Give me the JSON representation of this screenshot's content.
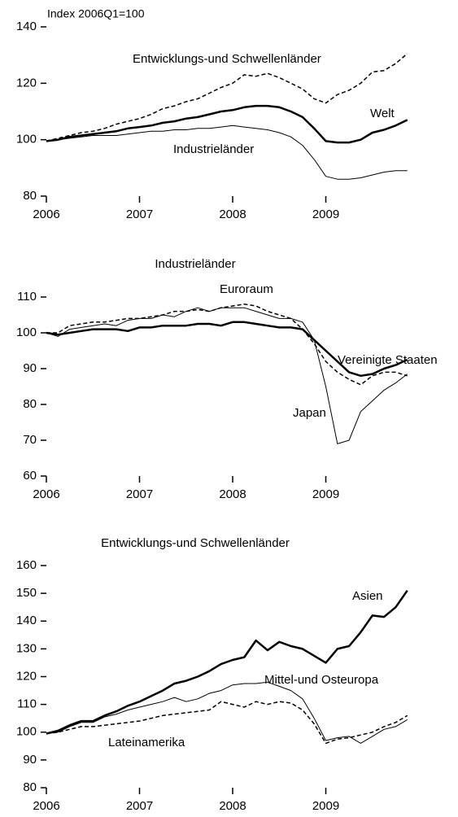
{
  "chart_data": [
    {
      "type": "line",
      "ylabel": "Index 2006Q1=100",
      "x": [
        2006,
        2006.125,
        2006.25,
        2006.375,
        2006.5,
        2006.625,
        2006.75,
        2006.875,
        2007,
        2007.125,
        2007.25,
        2007.375,
        2007.5,
        2007.625,
        2007.75,
        2007.875,
        2008,
        2008.125,
        2008.25,
        2008.375,
        2008.5,
        2008.625,
        2008.75,
        2008.875,
        2009,
        2009.125,
        2009.25,
        2009.375,
        2009.5,
        2009.625,
        2009.75,
        2009.875
      ],
      "xlim": [
        2006,
        2010
      ],
      "xticks": [
        2006,
        2007,
        2008,
        2009
      ],
      "ylim": [
        80,
        140
      ],
      "yticks": [
        80,
        100,
        120,
        140
      ],
      "series": [
        {
          "name": "Entwicklungs-und Schwellenländer",
          "color": "#000000",
          "dashed": true,
          "width": 1.5,
          "values": [
            99.5,
            100.5,
            101.5,
            102.5,
            103,
            104,
            105.5,
            106.5,
            107.5,
            109,
            111,
            112,
            113.5,
            114.5,
            116.5,
            118.5,
            120,
            123,
            122.5,
            123.5,
            122,
            120,
            118,
            114.5,
            113,
            116,
            117.5,
            120,
            124,
            124.5,
            127,
            130.5
          ]
        },
        {
          "name": "Welt",
          "color": "#000000",
          "dashed": false,
          "width": 2.5,
          "values": [
            99.5,
            100,
            101,
            101.5,
            102,
            102.5,
            103,
            104,
            104.5,
            105,
            106,
            106.5,
            107.5,
            108,
            109,
            110,
            110.5,
            111.5,
            112,
            112,
            111.5,
            110,
            108,
            104,
            99.5,
            99,
            99,
            100,
            102.5,
            103.5,
            105,
            107
          ]
        },
        {
          "name": "Industrieländer",
          "color": "#000000",
          "dashed": false,
          "width": 1,
          "values": [
            99.5,
            100,
            100.5,
            101,
            101.5,
            101.5,
            101.5,
            102,
            102.5,
            103,
            103,
            103.5,
            103.5,
            104,
            104,
            104.5,
            105,
            104.5,
            104,
            103.5,
            102.5,
            101,
            98,
            93,
            87,
            86,
            86,
            86.5,
            87.5,
            88.5,
            89,
            89
          ]
        }
      ]
    },
    {
      "type": "line",
      "title": "Industrieländer",
      "x": [
        2006,
        2006.125,
        2006.25,
        2006.375,
        2006.5,
        2006.625,
        2006.75,
        2006.875,
        2007,
        2007.125,
        2007.25,
        2007.375,
        2007.5,
        2007.625,
        2007.75,
        2007.875,
        2008,
        2008.125,
        2008.25,
        2008.375,
        2008.5,
        2008.625,
        2008.75,
        2008.875,
        2009,
        2009.125,
        2009.25,
        2009.375,
        2009.5,
        2009.625,
        2009.75,
        2009.875
      ],
      "xlim": [
        2006,
        2010
      ],
      "xticks": [
        2006,
        2007,
        2008,
        2009
      ],
      "ylim": [
        60,
        110
      ],
      "yticks": [
        60,
        70,
        80,
        90,
        100,
        110
      ],
      "series": [
        {
          "name": "Euroraum",
          "color": "#000000",
          "dashed": true,
          "width": 1.5,
          "values": [
            100,
            100,
            102,
            102.5,
            103,
            103,
            103.5,
            104,
            104,
            104.5,
            105,
            106,
            106,
            106.5,
            106,
            107,
            107.5,
            108,
            107.5,
            106,
            105,
            104,
            101,
            97,
            92,
            89,
            87,
            85.5,
            88,
            89,
            89,
            88
          ]
        },
        {
          "name": "Vereinigte Staaten",
          "color": "#000000",
          "dashed": false,
          "width": 2.5,
          "values": [
            100,
            99.5,
            100,
            100.5,
            101,
            101,
            101,
            100.5,
            101.5,
            101.5,
            102,
            102,
            102,
            102.5,
            102.5,
            102,
            103,
            103,
            102.5,
            102,
            101.5,
            101.5,
            101,
            98,
            95,
            92,
            89,
            88,
            88.5,
            90,
            91,
            92.5
          ]
        },
        {
          "name": "Japan",
          "color": "#000000",
          "dashed": false,
          "width": 1,
          "values": [
            100,
            99,
            101,
            101.5,
            102,
            102.5,
            102,
            103.5,
            104,
            104,
            105,
            104.5,
            106,
            107,
            106,
            107,
            107,
            107,
            106,
            105,
            104,
            104,
            103,
            98,
            85,
            69,
            70,
            78,
            81,
            84,
            86,
            88.5
          ]
        }
      ]
    },
    {
      "type": "line",
      "title": "Entwicklungs-und Schwellenländer",
      "x": [
        2006,
        2006.125,
        2006.25,
        2006.375,
        2006.5,
        2006.625,
        2006.75,
        2006.875,
        2007,
        2007.125,
        2007.25,
        2007.375,
        2007.5,
        2007.625,
        2007.75,
        2007.875,
        2008,
        2008.125,
        2008.25,
        2008.375,
        2008.5,
        2008.625,
        2008.75,
        2008.875,
        2009,
        2009.125,
        2009.25,
        2009.375,
        2009.5,
        2009.625,
        2009.75,
        2009.875
      ],
      "xlim": [
        2006,
        2010
      ],
      "xticks": [
        2006,
        2007,
        2008,
        2009
      ],
      "ylim": [
        80,
        160
      ],
      "yticks": [
        80,
        90,
        100,
        110,
        120,
        130,
        140,
        150,
        160
      ],
      "series": [
        {
          "name": "Asien",
          "color": "#000000",
          "dashed": false,
          "width": 2.5,
          "values": [
            99.5,
            100.5,
            102.5,
            104,
            104,
            106,
            107.5,
            109.5,
            111,
            113,
            115,
            117.5,
            118.5,
            120,
            122,
            124.5,
            126,
            127,
            133,
            129.5,
            132.5,
            131,
            130,
            127.5,
            125,
            130,
            131,
            136,
            142,
            141.5,
            145,
            151
          ]
        },
        {
          "name": "Mittel-und Osteuropa",
          "color": "#000000",
          "dashed": false,
          "width": 1,
          "values": [
            99.5,
            100,
            102,
            103.5,
            103.5,
            105.5,
            106.5,
            108,
            109,
            110,
            111,
            112.5,
            111,
            112,
            114,
            115,
            117,
            117.5,
            117.5,
            118,
            116.5,
            115,
            112,
            105,
            97,
            98,
            98.5,
            96,
            98.5,
            101,
            102,
            104.5
          ]
        },
        {
          "name": "Lateinamerika",
          "color": "#000000",
          "dashed": true,
          "width": 1.5,
          "values": [
            99.5,
            100,
            101,
            102,
            102,
            102.5,
            103,
            103.5,
            104,
            105,
            106,
            106.5,
            107,
            107.5,
            108,
            111,
            110,
            109,
            111,
            110,
            111,
            110.5,
            108,
            103,
            96,
            97.5,
            98,
            99,
            100,
            102,
            103.5,
            106
          ]
        }
      ]
    }
  ]
}
